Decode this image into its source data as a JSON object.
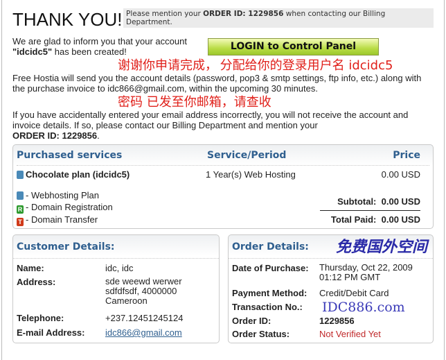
{
  "title": "THANK YOU!",
  "notice": {
    "pre": "Please mention your ",
    "bold": "ORDER ID: 1229856",
    "post": " when contacting our Billing Department."
  },
  "intro": {
    "line1": "We are glad to inform you that your account",
    "account": "\"idcidc5\"",
    "line2": " has been created!"
  },
  "login_button": "LOGIN to Control Panel",
  "details_text": "Free Hostia will send you the account details (password, pop3 & smtp settings, ftp info, etc.) along with the purchase invoice to idc866@gmail.com, within the upcoming 30 minutes.",
  "warning": {
    "text": "If you have accidentally entered your email address incorrectly, you will not receive the account and invoice details. If so, please contact our Billing Department and mention your",
    "order": "ORDER ID: 1229856",
    "end": "."
  },
  "overlay": {
    "line1": "谢谢你申请完成，",
    "line2": "分配给你的登录用户名  idcidc5",
    "line3": "密码 已发至你邮箱，请查收"
  },
  "services": {
    "headers": [
      "Purchased services",
      "Service/Period",
      "Price"
    ],
    "item": {
      "name": "Chocolate plan (idcidc5)",
      "period": "1 Year(s) Web Hosting",
      "price": "0.00 USD"
    },
    "legend": [
      {
        "icon": "server-icon",
        "badge": "",
        "label": "- Webhosting Plan",
        "color": "#4a8ab8"
      },
      {
        "icon": "registration-icon",
        "badge": "R",
        "label": "- Domain Registration",
        "color": "#2e9a2e"
      },
      {
        "icon": "transfer-icon",
        "badge": "T",
        "label": "- Domain Transfer",
        "color": "#d03a1a"
      }
    ],
    "subtotal_label": "Subtotal:",
    "subtotal": "0.00 USD",
    "total_label": "Total Paid:",
    "total": "0.00 USD"
  },
  "customer": {
    "title": "Customer Details:",
    "name_label": "Name:",
    "name": "idc, idc",
    "address_label": "Address:",
    "address1": "sde weewd werwer",
    "address2": "sdfdfsdf, 4000000",
    "address3": "Cameroon",
    "phone_label": "Telephone:",
    "phone": "+237.12451245124",
    "email_label": "E-mail Address:",
    "email": "idc866@gmail.com"
  },
  "order": {
    "title": "Order Details:",
    "date_label": "Date of Purchase:",
    "date1": "Thursday, Oct 22, 2009",
    "date2": "01:12 PM GMT",
    "payment_label": "Payment Method:",
    "payment": "Credit/Debit Card",
    "txn_label": "Transaction No.:",
    "id_label": "Order ID:",
    "id": "1229856",
    "status_label": "Order Status:",
    "status": "Not Verified Yet",
    "status_color": "#c0282a"
  },
  "watermark": {
    "line1": "IDC886.com",
    "line2": "免费国外空间"
  }
}
